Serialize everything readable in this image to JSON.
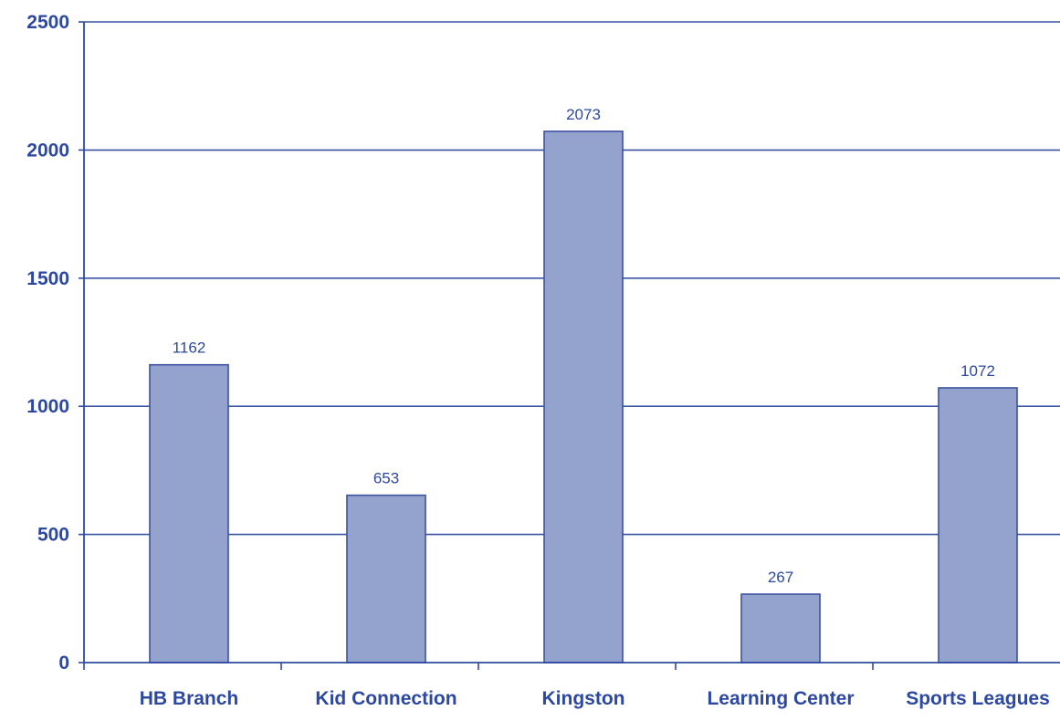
{
  "colors": {
    "axis": "#2f4a9e",
    "grid": "#3a53a4",
    "bar_fill": "#94a3ce",
    "bar_stroke": "#3d529e",
    "text": "#2d48a0"
  },
  "chart_data": {
    "type": "bar",
    "title": "",
    "xlabel": "",
    "ylabel": "",
    "categories": [
      "HB Branch",
      "Kid Connection",
      "Kingston",
      "Learning Center",
      "Sports Leagues"
    ],
    "values": [
      1162,
      653,
      2073,
      267,
      1072
    ],
    "data_labels": [
      "1162",
      "653",
      "2073",
      "267",
      "1072"
    ],
    "ylim": [
      0,
      2500
    ],
    "y_ticks": [
      0,
      500,
      1000,
      1500,
      2000,
      2500
    ],
    "y_tick_labels": [
      "0",
      "500",
      "1000",
      "1500",
      "2000",
      "2500"
    ],
    "grid": true,
    "legend": "none"
  }
}
